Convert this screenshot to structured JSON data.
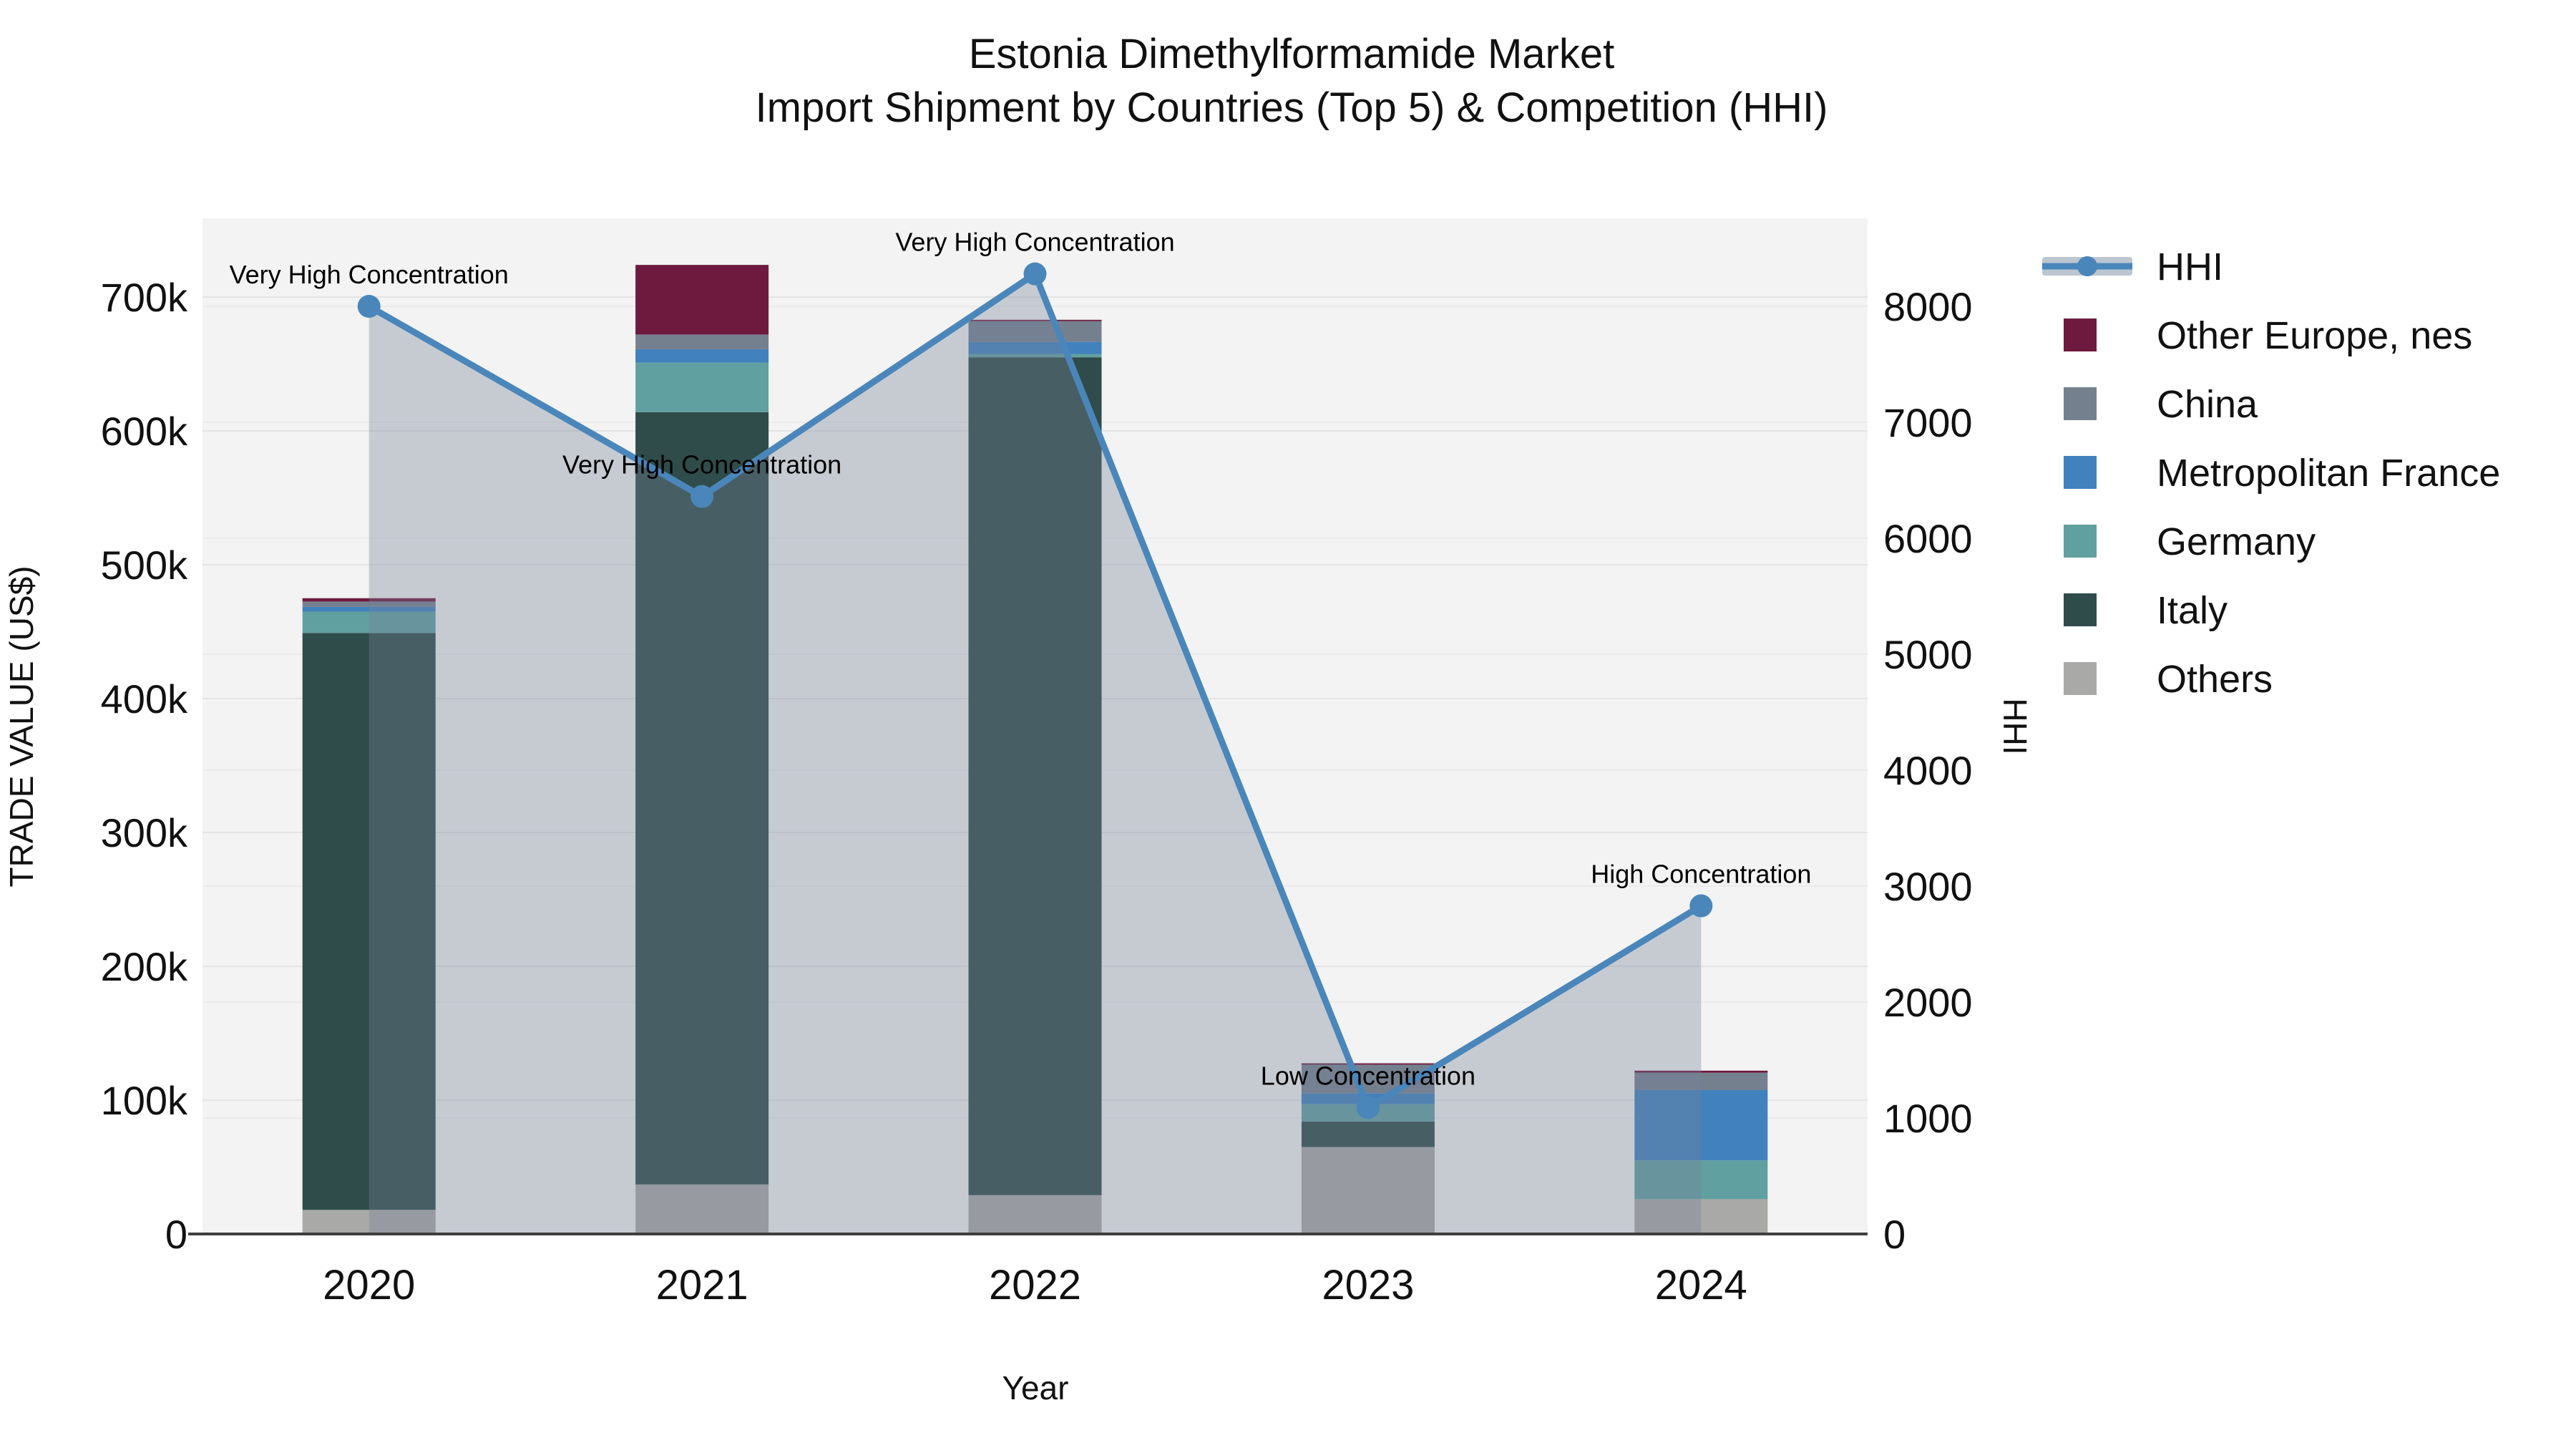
{
  "title": {
    "line1": "Estonia Dimethylformamide Market",
    "line2": "Import Shipment by Countries (Top 5) & Competition (HHI)"
  },
  "chart_data": {
    "type": "bar+line",
    "title": "Estonia Dimethylformamide Market Import Shipment by Countries (Top 5) & Competition (HHI)",
    "xlabel": "Year",
    "ylabel_left": "TRADE VALUE (US$)",
    "ylabel_right": "HHI",
    "categories": [
      "2020",
      "2021",
      "2022",
      "2023",
      "2024"
    ],
    "stack_order_note": "series listed bottom-to-top of the stacked bars; values in US$",
    "series": [
      {
        "name": "Others",
        "color": "#A9AAA7",
        "values": [
          18000,
          37000,
          29000,
          65000,
          26000
        ]
      },
      {
        "name": "Italy",
        "color": "#2F4C4A",
        "values": [
          431000,
          577000,
          626000,
          19000,
          0
        ]
      },
      {
        "name": "Germany",
        "color": "#61A0A0",
        "values": [
          16000,
          37000,
          2500,
          13000,
          29000
        ]
      },
      {
        "name": "Metropolitan France",
        "color": "#4181BD",
        "values": [
          3500,
          10000,
          9000,
          8000,
          52500
        ]
      },
      {
        "name": "China",
        "color": "#75808F",
        "values": [
          4000,
          11000,
          15500,
          21500,
          13000
        ]
      },
      {
        "name": "Other Europe, nes",
        "color": "#6D1A3E",
        "values": [
          2500,
          52000,
          1000,
          1000,
          1500
        ]
      }
    ],
    "line": {
      "name": "HHI",
      "color": "#4A86BA",
      "area_fill": "rgba(118,128,152,0.35)",
      "values": [
        8000,
        6360,
        8280,
        1090,
        2830
      ]
    },
    "annotations": [
      {
        "category": "2020",
        "text": "Very High Concentration"
      },
      {
        "category": "2021",
        "text": "Very High Concentration"
      },
      {
        "category": "2022",
        "text": "Very High Concentration"
      },
      {
        "category": "2023",
        "text": "Low Concentration"
      },
      {
        "category": "2024",
        "text": "High Concentration"
      }
    ],
    "y_left": {
      "min": 0,
      "max": 700000,
      "step": 100000,
      "tick_suffix": "k",
      "tick_labels": [
        "0",
        "100k",
        "200k",
        "300k",
        "400k",
        "500k",
        "600k",
        "700k"
      ]
    },
    "y_right": {
      "min": 0,
      "max": 8000,
      "step": 1000,
      "tick_labels": [
        "0",
        "1000",
        "2000",
        "3000",
        "4000",
        "5000",
        "6000",
        "7000",
        "8000"
      ]
    },
    "legend": {
      "position": "right",
      "items": [
        {
          "name": "HHI",
          "type": "line",
          "color": "#4A86BA",
          "band_color": "#BCC6D0"
        },
        {
          "name": "Other Europe, nes",
          "type": "swatch",
          "color": "#6D1A3E"
        },
        {
          "name": "China",
          "type": "swatch",
          "color": "#75808F"
        },
        {
          "name": "Metropolitan France",
          "type": "swatch",
          "color": "#4181BD"
        },
        {
          "name": "Germany",
          "type": "swatch",
          "color": "#61A0A0"
        },
        {
          "name": "Italy",
          "type": "swatch",
          "color": "#2F4C4A"
        },
        {
          "name": "Others",
          "type": "swatch",
          "color": "#A9AAA7"
        }
      ]
    },
    "grid": {
      "on": true,
      "left_grid_color": "#e4e4e4",
      "right_grid_color": "#ebebeb"
    },
    "plot_bg": "#f2f3f2",
    "axis_line_color": "#3f3f3f"
  }
}
